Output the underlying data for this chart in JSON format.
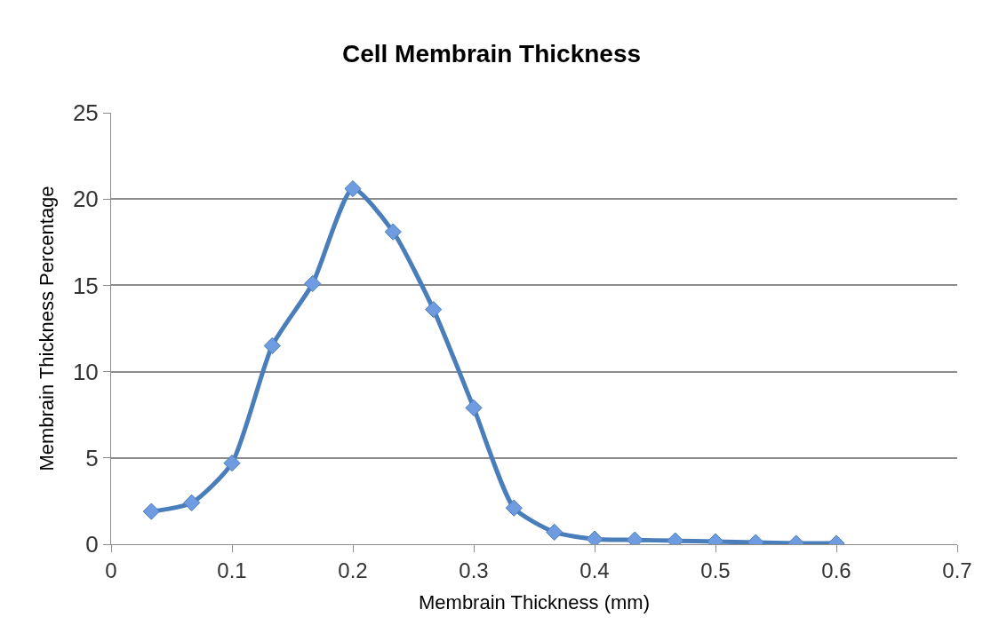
{
  "chart_data": {
    "type": "line",
    "title": "Cell Membrain Thickness",
    "xlabel": "Membrain Thickness (mm)",
    "ylabel": "Membrain Thickness Percentage",
    "x": [
      0.0333,
      0.0667,
      0.1,
      0.1333,
      0.1667,
      0.2,
      0.2333,
      0.2667,
      0.3,
      0.3333,
      0.3667,
      0.4,
      0.4333,
      0.4667,
      0.5,
      0.5333,
      0.5667,
      0.6
    ],
    "series": [
      {
        "color": "#4a7ebb",
        "values": [
          1.9,
          2.4,
          4.7,
          11.5,
          15.1,
          20.6,
          18.1,
          13.6,
          7.9,
          2.1,
          0.7,
          0.3,
          0.25,
          0.2,
          0.15,
          0.1,
          0.05,
          0.05
        ]
      }
    ],
    "xlim": [
      0,
      0.7
    ],
    "xticks": [
      0,
      0.1,
      0.2,
      0.3,
      0.4,
      0.5,
      0.6,
      0.7
    ],
    "ylim": [
      0,
      25
    ],
    "yticks": [
      0,
      5,
      10,
      15,
      20,
      25
    ],
    "grid": "y",
    "legend": false,
    "marker": "diamond",
    "line_style": "solid"
  }
}
